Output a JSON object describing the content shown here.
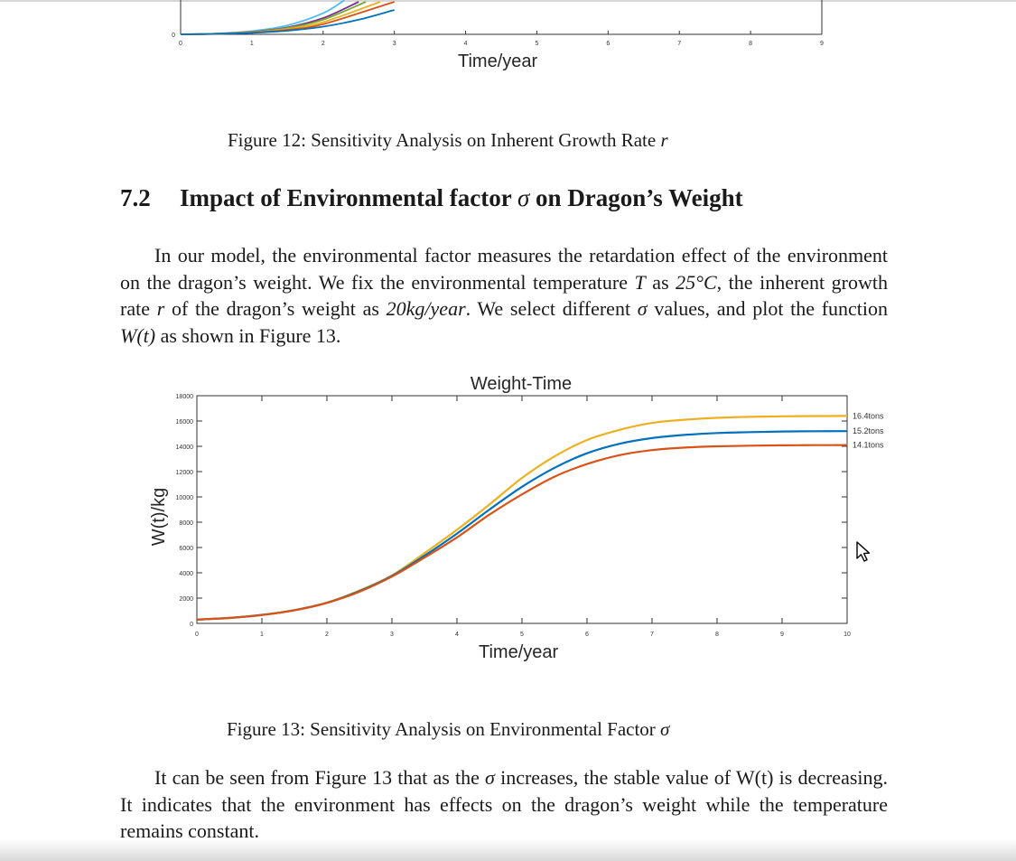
{
  "top_chart": {
    "xlabel": "Time/year",
    "y_tick_labels": [
      "0"
    ],
    "x_tick_labels": [
      "0",
      "1",
      "2",
      "3",
      "4",
      "5",
      "6",
      "7",
      "8",
      "9"
    ]
  },
  "figure12_caption": "Figure 12: Sensitivity Analysis on Inherent Growth Rate",
  "figure12_symbol": "r",
  "section": {
    "number": "7.2",
    "title_before": "Impact of Environmental factor",
    "symbol": "σ",
    "title_after": "on Dragon’s Weight"
  },
  "paragraph1": {
    "lines": [
      [
        "In our model, the environmental factor measures the retardation effect of the"
      ],
      [
        "environment on the dragon’s weight. We fix the environmental temperature ",
        {
          "m": "T"
        },
        " as"
      ],
      [
        {
          "m": "25°C"
        },
        ", the inherent growth rate ",
        {
          "m": "r"
        },
        " of the dragon’s weight as ",
        {
          "m": "20kg/year"
        },
        ". We select"
      ],
      [
        "different ",
        {
          "m": "σ"
        },
        " values, and plot the function ",
        {
          "m": "W(t)"
        },
        " as shown in Figure 13."
      ]
    ]
  },
  "figure13_caption": "Figure 13: Sensitivity Analysis on Environmental Factor",
  "figure13_symbol": "σ",
  "paragraph2": {
    "lines": [
      [
        "It can be seen from Figure 13 that as the ",
        {
          "m": "σ"
        },
        " increases, the stable value of W(t) is"
      ],
      [
        "decreasing. It indicates that the environment has effects on the dragon’s weight"
      ],
      [
        "while the temperature remains constant."
      ]
    ]
  },
  "colors": {
    "orange_series": "#EDB120",
    "blue_series": "#0072BD",
    "red_series": "#D95319"
  },
  "chart_data": [
    {
      "type": "line",
      "note": "Partially visible chart at top of page (Figure 12), curves cut off",
      "xlabel": "Time/year",
      "xlim": [
        0,
        9
      ],
      "x_ticks": [
        0,
        1,
        2,
        3,
        4,
        5,
        6,
        7,
        8,
        9
      ],
      "series": [
        {
          "color": "#4DBEEE",
          "x": [
            0,
            0.5,
            1,
            1.5,
            2,
            2.3
          ],
          "y": [
            0,
            10,
            40,
            110,
            260,
            420
          ]
        },
        {
          "color": "#7E2F8E",
          "x": [
            0,
            0.5,
            1,
            1.5,
            2,
            2.5
          ],
          "y": [
            0,
            8,
            30,
            85,
            200,
            400
          ]
        },
        {
          "color": "#77AC30",
          "x": [
            0,
            0.5,
            1,
            1.5,
            2,
            2.6
          ],
          "y": [
            0,
            8,
            28,
            78,
            180,
            400
          ]
        },
        {
          "color": "#EDB120",
          "x": [
            0,
            0.5,
            1,
            1.5,
            2,
            2.8
          ],
          "y": [
            0,
            7,
            25,
            65,
            150,
            400
          ]
        },
        {
          "color": "#D95319",
          "x": [
            0,
            0.5,
            1,
            1.5,
            2,
            3.0
          ],
          "y": [
            0,
            6,
            22,
            55,
            125,
            400
          ]
        },
        {
          "color": "#0072BD",
          "x": [
            0,
            0.5,
            1,
            1.5,
            2,
            2.5,
            3.0
          ],
          "y": [
            0,
            5,
            18,
            45,
            95,
            180,
            300
          ]
        }
      ]
    },
    {
      "type": "line",
      "title": "Weight-Time",
      "xlabel": "Time/year",
      "ylabel": "W(t)/kg",
      "xlim": [
        0,
        10
      ],
      "ylim": [
        0,
        18000
      ],
      "x_ticks": [
        0,
        1,
        2,
        3,
        4,
        5,
        6,
        7,
        8,
        9,
        10
      ],
      "y_ticks": [
        0,
        2000,
        4000,
        6000,
        8000,
        10000,
        12000,
        14000,
        16000,
        18000
      ],
      "grid": false,
      "series": [
        {
          "name": "16.4tons",
          "color": "#EDB120",
          "x": [
            0,
            0.5,
            1,
            1.5,
            2,
            2.5,
            3,
            3.5,
            4,
            4.5,
            5,
            5.5,
            6,
            6.5,
            7,
            7.5,
            8,
            8.5,
            9,
            9.5,
            10
          ],
          "y": [
            300,
            440,
            680,
            1060,
            1650,
            2600,
            3800,
            5550,
            7400,
            9400,
            11500,
            13200,
            14500,
            15300,
            15850,
            16100,
            16250,
            16330,
            16370,
            16390,
            16400
          ]
        },
        {
          "name": "15.2tons",
          "color": "#0072BD",
          "x": [
            0,
            0.5,
            1,
            1.5,
            2,
            2.5,
            3,
            3.5,
            4,
            4.5,
            5,
            5.5,
            6,
            6.5,
            7,
            7.5,
            8,
            8.5,
            9,
            9.5,
            10
          ],
          "y": [
            300,
            430,
            670,
            1040,
            1630,
            2550,
            3750,
            5350,
            7100,
            9000,
            10800,
            12300,
            13450,
            14200,
            14650,
            14900,
            15050,
            15120,
            15170,
            15190,
            15200
          ]
        },
        {
          "name": "14.1tons",
          "color": "#D95319",
          "x": [
            0,
            0.5,
            1,
            1.5,
            2,
            2.5,
            3,
            3.5,
            4,
            4.5,
            5,
            5.5,
            6,
            6.5,
            7,
            7.5,
            8,
            8.5,
            9,
            9.5,
            10
          ],
          "y": [
            300,
            430,
            660,
            1030,
            1620,
            2500,
            3700,
            5200,
            6800,
            8600,
            10200,
            11600,
            12600,
            13300,
            13700,
            13900,
            14000,
            14050,
            14080,
            14090,
            14100
          ]
        }
      ]
    }
  ]
}
